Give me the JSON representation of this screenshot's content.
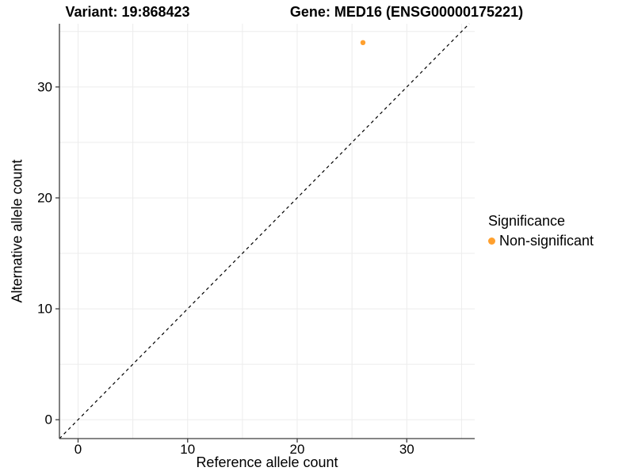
{
  "figure": {
    "background": "#ffffff"
  },
  "chart_data": {
    "type": "scatter",
    "titles": {
      "left": "Variant: 19:868423",
      "right": "Gene: MED16 (ENSG00000175221)"
    },
    "xlabel": "Reference allele count",
    "ylabel": "Alternative allele count",
    "xlim": [
      -1.7,
      36.2
    ],
    "ylim": [
      -1.7,
      35.7
    ],
    "x_ticks": [
      0,
      10,
      20,
      30
    ],
    "y_ticks": [
      0,
      10,
      20,
      30
    ],
    "x_grid": [
      0,
      5,
      10,
      15,
      20,
      25,
      30,
      35
    ],
    "y_grid": [
      0,
      5,
      10,
      15,
      20,
      25,
      30,
      35
    ],
    "grid": true,
    "grid_color": "#ececec",
    "axis_color": "#3c3c3c",
    "identity_line": {
      "equation": "y = x",
      "style": "dashed",
      "color": "#000000"
    },
    "series": [
      {
        "name": "Non-significant",
        "color": "#FFA02E",
        "point_radius": 3.2,
        "points": [
          {
            "x": 26,
            "y": 34
          }
        ]
      }
    ],
    "legend": {
      "title": "Significance",
      "position": "right",
      "entries": [
        {
          "label": "Non-significant",
          "color": "#FFA02E"
        }
      ]
    }
  }
}
